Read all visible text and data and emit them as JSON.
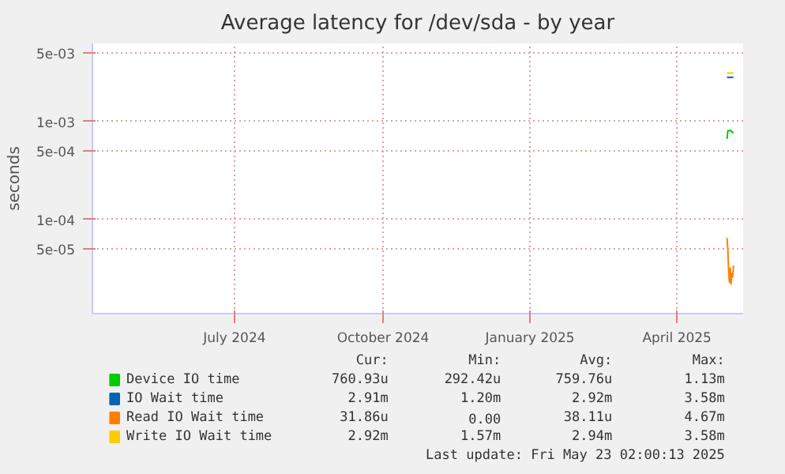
{
  "chart_data": {
    "type": "line",
    "title": "Average latency for /dev/sda - by year",
    "ylabel": "seconds",
    "log": "y",
    "grid": true,
    "legend": "bottom",
    "xlim": [
      "2024-04-19",
      "2025-05-27"
    ],
    "xticks": [
      {
        "value": "2024-07-16",
        "label": "July 2024"
      },
      {
        "value": "2024-10-16",
        "label": "October 2024"
      },
      {
        "value": "2025-01-15",
        "label": "January 2025"
      },
      {
        "value": "2025-04-16",
        "label": "April 2025"
      }
    ],
    "ylim": [
      1.1e-05,
      0.0062
    ],
    "yticks": [
      {
        "value": 5e-05,
        "label": "5e-05"
      },
      {
        "value": 0.0001,
        "label": "1e-04"
      },
      {
        "value": 0.0005,
        "label": "5e-04"
      },
      {
        "value": 0.001,
        "label": "1e-03"
      },
      {
        "value": 0.005,
        "label": "5e-03"
      }
    ],
    "x": [
      "2025-05-17T00:00",
      "2025-05-17T12:00",
      "2025-05-18T00:00",
      "2025-05-18T12:00",
      "2025-05-19T00:00",
      "2025-05-19T12:00",
      "2025-05-20T00:00",
      "2025-05-20T12:00",
      "2025-05-21T00:00"
    ],
    "series": [
      {
        "name": "Device IO time",
        "color": "#00cc00",
        "values": [
          0.00066,
          0.0008,
          0.0008,
          0.0008,
          0.00081,
          0.0008,
          0.00078,
          0.00077,
          0.00076
        ]
      },
      {
        "name": "IO Wait time",
        "color": "#0066b3",
        "values": [
          0.0028,
          0.0028,
          0.0028,
          0.0028,
          0.0028,
          0.0028,
          0.0028,
          0.0028,
          0.0028
        ]
      },
      {
        "name": "Read IO Wait time",
        "color": "#ff8000",
        "values": [
          6.5e-05,
          5e-05,
          3e-05,
          2.3e-05,
          3.2e-05,
          2.2e-05,
          2.8e-05,
          2.6e-05,
          3.4e-05
        ]
      },
      {
        "name": "Write IO Wait time",
        "color": "#ffcc00",
        "values": [
          0.0031,
          0.0031,
          0.0031,
          0.0031,
          0.0031,
          0.0031,
          0.0031,
          0.0031,
          0.0031
        ]
      }
    ],
    "annotations": [
      "Cur:",
      "Min:",
      "Avg:",
      "Max:",
      "760.93u",
      "292.42u",
      "759.76u",
      "1.13m",
      "2.91m",
      "1.20m",
      "2.92m",
      "3.58m",
      "31.86u",
      "0.00",
      "38.11u",
      "4.67m",
      "2.92m",
      "1.57m",
      "2.94m",
      "3.58m",
      "Last update: Fri May 23 02:00:13 2025"
    ]
  }
}
